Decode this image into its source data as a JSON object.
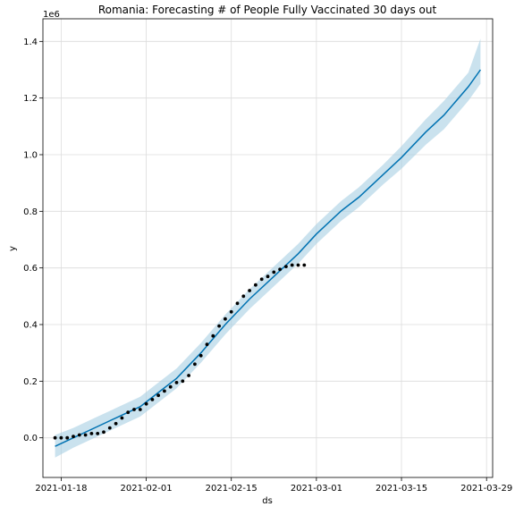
{
  "chart_data": {
    "type": "line",
    "title": "Romania: Forecasting # of People Fully Vaccinated 30 days out",
    "xlabel": "ds",
    "ylabel": "y",
    "y_multiplier_label": "1e6",
    "grid": true,
    "xlim": [
      "2021-01-15",
      "2021-03-30"
    ],
    "ylim": [
      -0.14,
      1.48
    ],
    "x_ticks": [
      "2021-01-18",
      "2021-02-01",
      "2021-02-15",
      "2021-03-01",
      "2021-03-15",
      "2021-03-29"
    ],
    "y_ticks": [
      0.0,
      0.2,
      0.4,
      0.6,
      0.8,
      1.0,
      1.2,
      1.4
    ],
    "y_tick_labels": [
      "0.0",
      "0.2",
      "0.4",
      "0.6",
      "0.8",
      "1.0",
      "1.2",
      "1.4"
    ],
    "colors": {
      "forecast_line": "#0072b2",
      "uncertainty_band": "#a6cee3",
      "observed_points": "#000000"
    },
    "series": [
      {
        "type": "line",
        "x": [
          "2021-01-17",
          "2021-01-20",
          "2021-01-24",
          "2021-01-28",
          "2021-01-31",
          "2021-02-03",
          "2021-02-06",
          "2021-02-10",
          "2021-02-14",
          "2021-02-18",
          "2021-02-22",
          "2021-02-26",
          "2021-03-01",
          "2021-03-05",
          "2021-03-08",
          "2021-03-12",
          "2021-03-15",
          "2021-03-19",
          "2021-03-22",
          "2021-03-26",
          "2021-03-28"
        ],
        "y": [
          -0.03,
          0.0,
          0.04,
          0.08,
          0.11,
          0.16,
          0.21,
          0.3,
          0.4,
          0.49,
          0.57,
          0.65,
          0.72,
          0.8,
          0.85,
          0.93,
          0.99,
          1.08,
          1.14,
          1.24,
          1.3
        ]
      },
      {
        "type": "band",
        "x": [
          "2021-01-17",
          "2021-01-20",
          "2021-01-24",
          "2021-01-28",
          "2021-01-31",
          "2021-02-03",
          "2021-02-06",
          "2021-02-10",
          "2021-02-14",
          "2021-02-18",
          "2021-02-22",
          "2021-02-26",
          "2021-03-01",
          "2021-03-05",
          "2021-03-08",
          "2021-03-12",
          "2021-03-15",
          "2021-03-19",
          "2021-03-22",
          "2021-03-26",
          "2021-03-28"
        ],
        "lower": [
          -0.07,
          -0.035,
          0.005,
          0.045,
          0.075,
          0.125,
          0.175,
          0.265,
          0.365,
          0.455,
          0.535,
          0.615,
          0.685,
          0.765,
          0.815,
          0.895,
          0.95,
          1.035,
          1.09,
          1.19,
          1.25
        ],
        "upper": [
          0.01,
          0.035,
          0.075,
          0.115,
          0.145,
          0.195,
          0.245,
          0.335,
          0.435,
          0.525,
          0.605,
          0.685,
          0.755,
          0.835,
          0.885,
          0.965,
          1.03,
          1.125,
          1.19,
          1.29,
          1.41
        ]
      },
      {
        "type": "scatter",
        "x": [
          "2021-01-17",
          "2021-01-18",
          "2021-01-19",
          "2021-01-20",
          "2021-01-21",
          "2021-01-22",
          "2021-01-23",
          "2021-01-24",
          "2021-01-25",
          "2021-01-26",
          "2021-01-27",
          "2021-01-28",
          "2021-01-29",
          "2021-01-30",
          "2021-01-31",
          "2021-02-01",
          "2021-02-02",
          "2021-02-03",
          "2021-02-04",
          "2021-02-05",
          "2021-02-06",
          "2021-02-07",
          "2021-02-08",
          "2021-02-09",
          "2021-02-10",
          "2021-02-11",
          "2021-02-12",
          "2021-02-13",
          "2021-02-14",
          "2021-02-15",
          "2021-02-16",
          "2021-02-17",
          "2021-02-18",
          "2021-02-19",
          "2021-02-20",
          "2021-02-21",
          "2021-02-22",
          "2021-02-23",
          "2021-02-24",
          "2021-02-25",
          "2021-02-26",
          "2021-02-27"
        ],
        "y": [
          0.0,
          0.0,
          0.0,
          0.005,
          0.01,
          0.01,
          0.015,
          0.015,
          0.02,
          0.035,
          0.05,
          0.07,
          0.09,
          0.1,
          0.1,
          0.12,
          0.135,
          0.15,
          0.165,
          0.18,
          0.195,
          0.2,
          0.22,
          0.26,
          0.29,
          0.33,
          0.36,
          0.395,
          0.42,
          0.445,
          0.475,
          0.5,
          0.52,
          0.54,
          0.56,
          0.57,
          0.585,
          0.595,
          0.605,
          0.61,
          0.61,
          0.61
        ]
      }
    ]
  }
}
